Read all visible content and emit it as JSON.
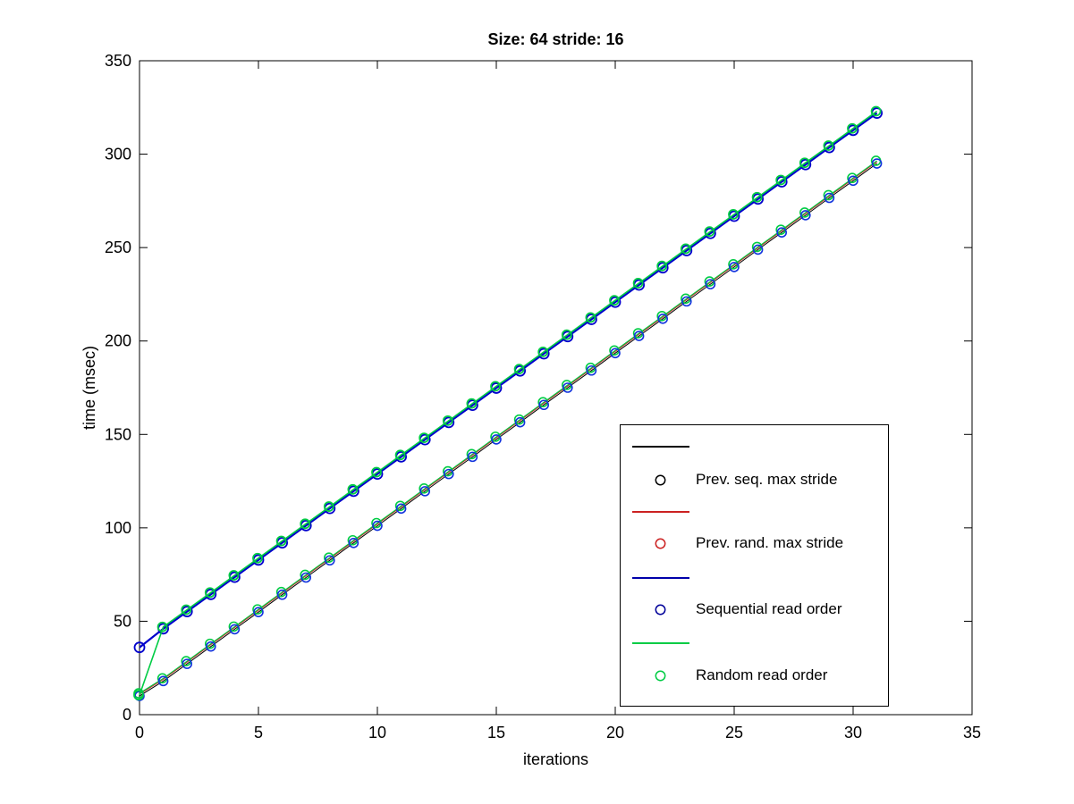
{
  "title": "Size: 64 stride: 16",
  "axes": {
    "xlabel": "iterations",
    "ylabel": "time (msec)",
    "x_ticks": [
      0,
      5,
      10,
      15,
      20,
      25,
      30,
      35
    ],
    "y_ticks": [
      0,
      50,
      100,
      150,
      200,
      250,
      300,
      350
    ]
  },
  "legend": {
    "position": "lower-right-inside",
    "entries": [
      {
        "label": "Prev. seq. max stride",
        "line_color": "#000000",
        "marker_color": "#000000"
      },
      {
        "label": "Prev. rand. max stride",
        "line_color": "#cc2222",
        "marker_color": "#cc2222"
      },
      {
        "label": "Sequential read order",
        "line_color": "#0000aa",
        "marker_color": "#000099"
      },
      {
        "label": "Random read order",
        "line_color": "#00cc44",
        "marker_color": "#00cc44"
      }
    ]
  },
  "chart_data": {
    "type": "line",
    "title": "Size: 64 stride: 16",
    "xlabel": "iterations",
    "ylabel": "time (msec)",
    "xlim": [
      0,
      35
    ],
    "ylim": [
      0,
      350
    ],
    "grid": false,
    "marker": "o",
    "x": [
      0,
      1,
      2,
      3,
      4,
      5,
      6,
      7,
      8,
      9,
      10,
      11,
      12,
      13,
      14,
      15,
      16,
      17,
      18,
      19,
      20,
      21,
      22,
      23,
      24,
      25,
      26,
      27,
      28,
      29,
      30,
      31
    ],
    "series": [
      {
        "name": "Prev. seq. max stride",
        "color": "#000000",
        "values": [
          10,
          18,
          27.2,
          36.5,
          45.7,
          54.9,
          64.2,
          73.4,
          82.6,
          91.9,
          101.1,
          110.3,
          119.6,
          128.8,
          138,
          147.3,
          156.5,
          165.8,
          175,
          184.2,
          193.5,
          202.7,
          211.9,
          221.2,
          230.4,
          239.6,
          248.9,
          258.1,
          267.3,
          276.6,
          285.8,
          295
        ]
      },
      {
        "name": "Prev. rand. max stride",
        "color": "#cc2222",
        "values": [
          10.5,
          18.5,
          27.7,
          37,
          46.2,
          55.4,
          64.7,
          73.9,
          83.1,
          92.4,
          101.6,
          110.8,
          120.1,
          129.3,
          138.5,
          147.8,
          157,
          166.3,
          175.5,
          184.7,
          194,
          203.2,
          212.4,
          221.7,
          230.9,
          240.1,
          249.4,
          258.6,
          267.8,
          277.1,
          286.3,
          295.5
        ]
      },
      {
        "name": "Sequential read order",
        "color": "#0000cc",
        "values": [
          36,
          46,
          55.2,
          64.4,
          73.6,
          82.8,
          92,
          101.2,
          110.4,
          119.6,
          128.8,
          138,
          147.2,
          156.4,
          165.6,
          174.8,
          184,
          193.2,
          202.4,
          211.6,
          220.8,
          230,
          239.2,
          248.4,
          257.6,
          266.8,
          276,
          285.2,
          294.4,
          303.6,
          312.8,
          322
        ]
      },
      {
        "name": "Random read order",
        "color": "#00cc44",
        "values": [
          10,
          46.5,
          55.7,
          64.9,
          74.1,
          83.3,
          92.5,
          101.7,
          110.9,
          120.1,
          129.3,
          138.5,
          147.7,
          156.9,
          166.1,
          175.3,
          184.5,
          193.7,
          202.9,
          212.1,
          221.3,
          230.5,
          239.7,
          248.9,
          258.1,
          267.3,
          276.5,
          285.7,
          294.9,
          304.1,
          313.3,
          322.5
        ]
      }
    ]
  }
}
